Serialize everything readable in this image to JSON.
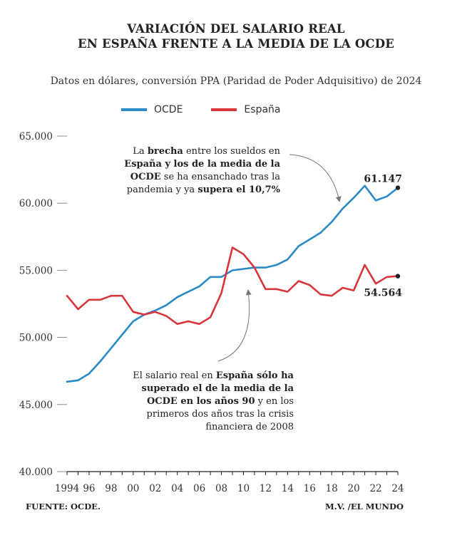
{
  "title_line1": "VARIACIÓN DEL SALARIO REAL",
  "title_line2": "EN ESPAÑA FRENTE A LA MEDIA DE LA OCDE",
  "subtitle": "Datos en dólares, conversión PPA (Paridad de Poder Adquisitivo) de 2024",
  "footer_source": "FUENTE: OCDE.",
  "footer_credit": "M.V. /EL MUNDO",
  "colors": {
    "ocde": "#2a8ac6",
    "espana": "#d9353b"
  },
  "chart_data": {
    "type": "line",
    "title": "VARIACIÓN DEL SALARIO REAL EN ESPAÑA FRENTE A LA MEDIA DE LA OCDE",
    "ylim": [
      40000,
      65000
    ],
    "xlim": [
      1994,
      2024
    ],
    "y_ticks": [
      40000,
      45000,
      50000,
      55000,
      60000,
      65000
    ],
    "y_tick_labels": [
      "40.000",
      "45.000",
      "50.000",
      "55.000",
      "60.000",
      "65.000"
    ],
    "x_ticks": [
      1994,
      1996,
      1998,
      2000,
      2002,
      2004,
      2006,
      2008,
      2010,
      2012,
      2014,
      2016,
      2018,
      2020,
      2022,
      2024
    ],
    "x_tick_labels": [
      "1994",
      "96",
      "98",
      "00",
      "02",
      "04",
      "06",
      "08",
      "10",
      "12",
      "14",
      "16",
      "18",
      "20",
      "22",
      "24"
    ],
    "x": [
      1994,
      1995,
      1996,
      1997,
      1998,
      1999,
      2000,
      2001,
      2002,
      2003,
      2004,
      2005,
      2006,
      2007,
      2008,
      2009,
      2010,
      2011,
      2012,
      2013,
      2014,
      2015,
      2016,
      2017,
      2018,
      2019,
      2020,
      2021,
      2022,
      2023,
      2024
    ],
    "series": [
      {
        "name": "OCDE",
        "color": "#2a8ac6",
        "values": [
          46700,
          46800,
          47300,
          48200,
          49200,
          50200,
          51200,
          51700,
          52000,
          52400,
          53000,
          53400,
          53800,
          54500,
          54500,
          55000,
          55100,
          55200,
          55200,
          55400,
          55800,
          56800,
          57300,
          57800,
          58600,
          59600,
          60400,
          61300,
          60200,
          60500,
          61147
        ]
      },
      {
        "name": "España",
        "color": "#d9353b",
        "values": [
          53100,
          52100,
          52800,
          52800,
          53100,
          53100,
          51900,
          51700,
          51900,
          51600,
          51000,
          51200,
          51000,
          51500,
          53300,
          56700,
          56200,
          55200,
          53600,
          53600,
          53400,
          54200,
          53900,
          53200,
          53100,
          53700,
          53500,
          55400,
          54000,
          54500,
          54564
        ]
      }
    ],
    "end_labels": {
      "ocde": "61.147",
      "espana": "54.564"
    },
    "annotation_top": {
      "line1_a": "La ",
      "line1_b": "brecha",
      "line1_c": " entre los sueldos en",
      "line2": "España y los de la media de la",
      "line3_a": "OCDE",
      "line3_b": " se ha ensanchado tras la",
      "line4_a": "pandemia y ya ",
      "line4_b": "supera el 10,7%"
    },
    "annotation_bottom": {
      "line1_a": "El salario real en ",
      "line1_b": "España sólo ha",
      "line2": "superado el de la media de la",
      "line3_a": "OCDE en los años 90",
      "line3_b": " y en los",
      "line4": "primeros dos años tras la crisis",
      "line5": "financiera de 2008"
    }
  }
}
